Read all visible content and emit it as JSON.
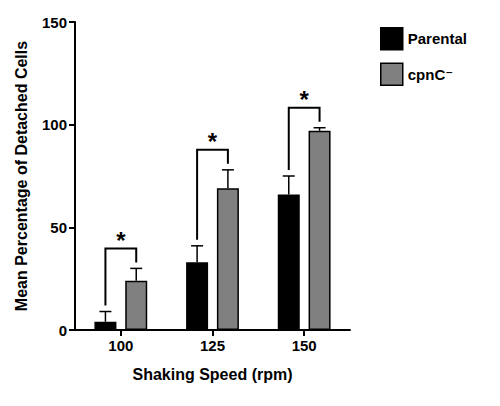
{
  "chart_data": {
    "type": "bar",
    "x_label": "Shaking Speed (rpm)",
    "y_label": "Mean Percentage of Detached Cells",
    "categories": [
      "100",
      "125",
      "150"
    ],
    "series": [
      {
        "name": "Parental",
        "color": "#000000",
        "values": [
          4,
          33,
          66
        ],
        "errors": [
          5,
          8,
          9
        ]
      },
      {
        "name": "cpnC⁻",
        "color": "#808080",
        "values": [
          24,
          69,
          97
        ],
        "errors": [
          6,
          9,
          1.5
        ]
      }
    ],
    "ylim": [
      0,
      150
    ],
    "yticks": [
      0,
      50,
      100,
      150
    ],
    "grid": false,
    "legend": "upper right",
    "significance": [
      {
        "category": "100",
        "label": "*"
      },
      {
        "category": "125",
        "label": "*"
      },
      {
        "category": "150",
        "label": "*"
      }
    ]
  }
}
